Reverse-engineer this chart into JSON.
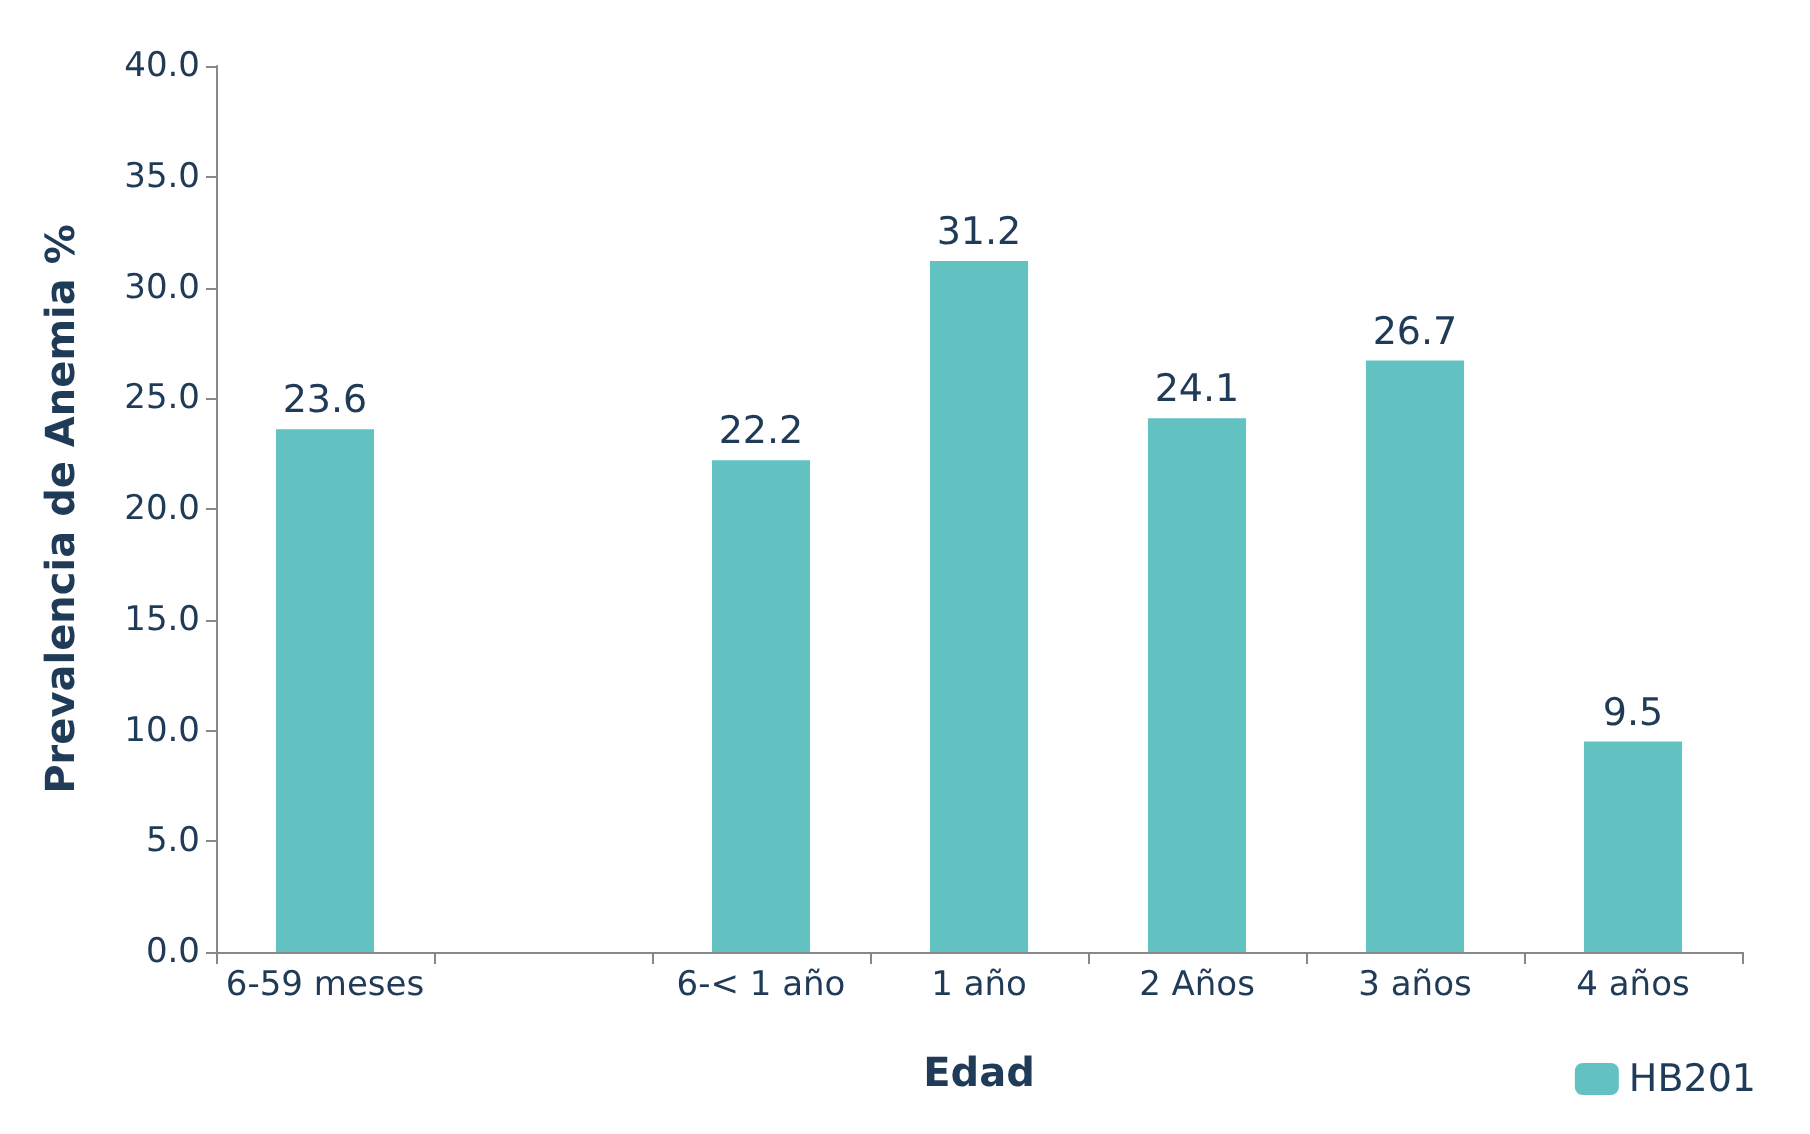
{
  "chart_data": {
    "type": "bar",
    "xlabel": "Edad",
    "ylabel": "Prevalencia de Anemia %",
    "categories": [
      "6-59 meses",
      null,
      "6-< 1 año",
      "1 año",
      "2 Años",
      "3 años",
      "4 años"
    ],
    "series": [
      {
        "name": "HB201",
        "color": "#62c1c1",
        "values": [
          23.6,
          null,
          22.2,
          31.2,
          24.1,
          26.7,
          9.5
        ]
      }
    ],
    "ylim": [
      0,
      40
    ],
    "yticks": [
      {
        "value": 0,
        "label": "0.0"
      },
      {
        "value": 5,
        "label": "5.0"
      },
      {
        "value": 10,
        "label": "10.0"
      },
      {
        "value": 15,
        "label": "15.0"
      },
      {
        "value": 20,
        "label": "20.0"
      },
      {
        "value": 25,
        "label": "25.0"
      },
      {
        "value": 30,
        "label": "30.0"
      },
      {
        "value": 35,
        "label": "35.0"
      },
      {
        "value": 40,
        "label": "40.0"
      }
    ],
    "data_labels": true,
    "grid": false,
    "legend": "bottom right"
  }
}
